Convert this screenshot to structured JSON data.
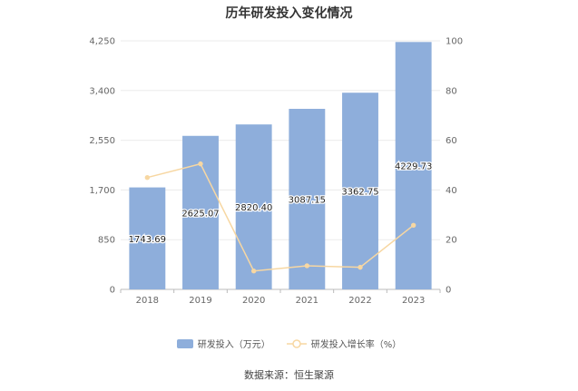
{
  "chart_data": {
    "type": "bar",
    "title": "历年研发投入变化情况",
    "categories": [
      "2018",
      "2019",
      "2020",
      "2021",
      "2022",
      "2023"
    ],
    "series": [
      {
        "name": "研发投入（万元）",
        "type": "bar",
        "axis": "left",
        "values": [
          1743.69,
          2625.07,
          2820.4,
          3087.15,
          3362.75,
          4229.73
        ],
        "labels": [
          "1743.69",
          "2625.07",
          "2820.40",
          "3087.15",
          "3362.75",
          "4229.73"
        ],
        "color": "#8eaedb"
      },
      {
        "name": "研发投入增长率（%）",
        "type": "line",
        "axis": "right",
        "values": [
          45.0,
          50.5,
          7.4,
          9.5,
          8.9,
          25.8
        ],
        "color": "#f7d7a2"
      }
    ],
    "y_left": {
      "ticks": [
        "0",
        "850",
        "1,700",
        "2,550",
        "3,400",
        "4,250"
      ],
      "ylim": [
        0,
        4250
      ]
    },
    "y_right": {
      "ticks": [
        "0",
        "20",
        "40",
        "60",
        "80",
        "100"
      ],
      "ylim": [
        0,
        100
      ]
    },
    "grid": true,
    "legend_position": "bottom"
  },
  "source_text": "数据来源：恒生聚源"
}
